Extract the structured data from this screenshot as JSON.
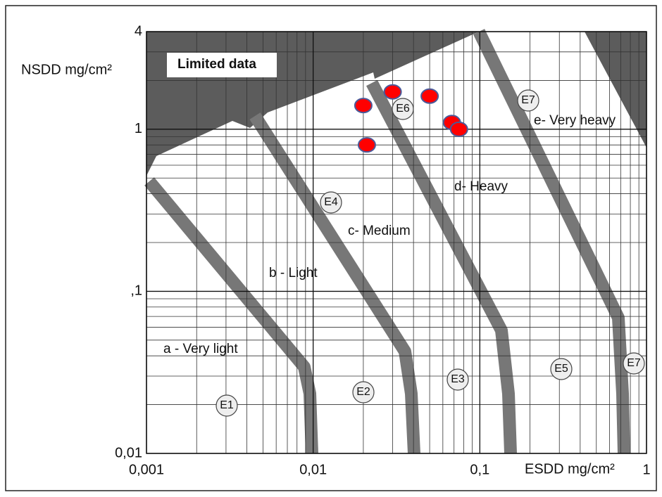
{
  "chart_data": {
    "type": "scatter",
    "x_label": "ESDD mg/cm²",
    "y_label": "NSDD mg/cm²",
    "log_x": true,
    "log_y": true,
    "grid": true,
    "xlim": [
      0.001,
      1
    ],
    "ylim": [
      0.01,
      4
    ],
    "xticks": [
      {
        "value": 0.001,
        "label": "0,001"
      },
      {
        "value": 0.01,
        "label": "0,01"
      },
      {
        "value": 0.1,
        "label": "0,1"
      },
      1
    ],
    "yticks": [
      {
        "value": 0.01,
        "label": "0,01"
      },
      {
        "value": 0.1,
        "label": ",1"
      },
      1,
      4
    ],
    "xminorticks": [
      0.002,
      0.003,
      0.004,
      0.005,
      0.006,
      0.007,
      0.008,
      0.009,
      0.02,
      0.03,
      0.04,
      0.05,
      0.06,
      0.07,
      0.08,
      0.09,
      0.2,
      0.3,
      0.4,
      0.5,
      0.6,
      0.7,
      0.8,
      0.9
    ],
    "yminorticks": [
      0.02,
      0.03,
      0.04,
      0.05,
      0.06,
      0.07,
      0.08,
      0.09,
      0.2,
      0.3,
      0.4,
      0.5,
      0.6,
      0.7,
      0.8,
      0.9,
      2,
      3
    ],
    "series": [
      {
        "color": "#ff0000",
        "x": [
          0.02,
          0.03,
          0.05,
          0.068,
          0.075,
          0.021
        ],
        "values": [
          1.4,
          1.7,
          1.6,
          1.1,
          1.0,
          0.8
        ]
      }
    ],
    "annotations": [
      "Limited data",
      "a - Very light",
      "b - Light",
      "c- Medium",
      "d- Heavy",
      "e- Very heavy",
      "E1",
      "E2",
      "E3",
      "E4",
      "E5",
      "E6",
      "E7",
      "E7"
    ]
  }
}
